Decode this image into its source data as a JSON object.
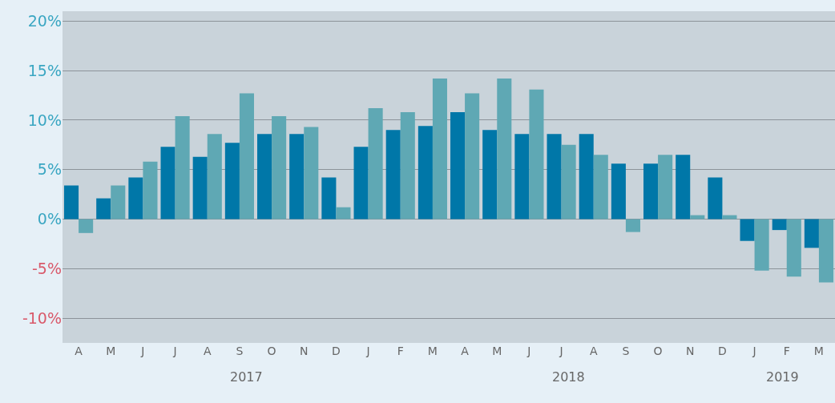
{
  "chart_data": {
    "type": "bar",
    "categories": [
      "A",
      "M",
      "J",
      "J",
      "A",
      "S",
      "O",
      "N",
      "D",
      "J",
      "F",
      "M",
      "A",
      "M",
      "J",
      "J",
      "A",
      "S",
      "O",
      "N",
      "D",
      "J",
      "F",
      "M"
    ],
    "series": [
      {
        "color": "#0077a8",
        "values": [
          3.4,
          2.1,
          4.2,
          7.3,
          6.3,
          7.7,
          8.6,
          8.6,
          4.2,
          7.3,
          9.0,
          9.4,
          10.8,
          9.0,
          8.6,
          8.6,
          8.6,
          5.6,
          5.6,
          6.5,
          4.2,
          -2.2,
          -1.1,
          -2.9
        ]
      },
      {
        "color": "#5fa8b4",
        "values": [
          -1.4,
          3.4,
          5.8,
          10.4,
          8.6,
          12.7,
          10.4,
          9.3,
          1.2,
          11.2,
          10.8,
          14.2,
          12.7,
          14.2,
          13.1,
          7.5,
          6.5,
          -1.3,
          6.5,
          0.4,
          0.4,
          -5.2,
          -5.8,
          -6.4
        ]
      }
    ],
    "ylim": [
      -12.5,
      21
    ],
    "yticks": [
      {
        "value": -10,
        "label": "-10%"
      },
      {
        "value": -5,
        "label": "-5%"
      },
      {
        "value": 0,
        "label": "0%"
      },
      {
        "value": 5,
        "label": "5%"
      },
      {
        "value": 10,
        "label": "10%"
      },
      {
        "value": 15,
        "label": "15%"
      },
      {
        "value": 20,
        "label": "20%"
      }
    ],
    "grid": "y",
    "annotations": [
      "2017",
      "2018",
      "2019"
    ]
  }
}
